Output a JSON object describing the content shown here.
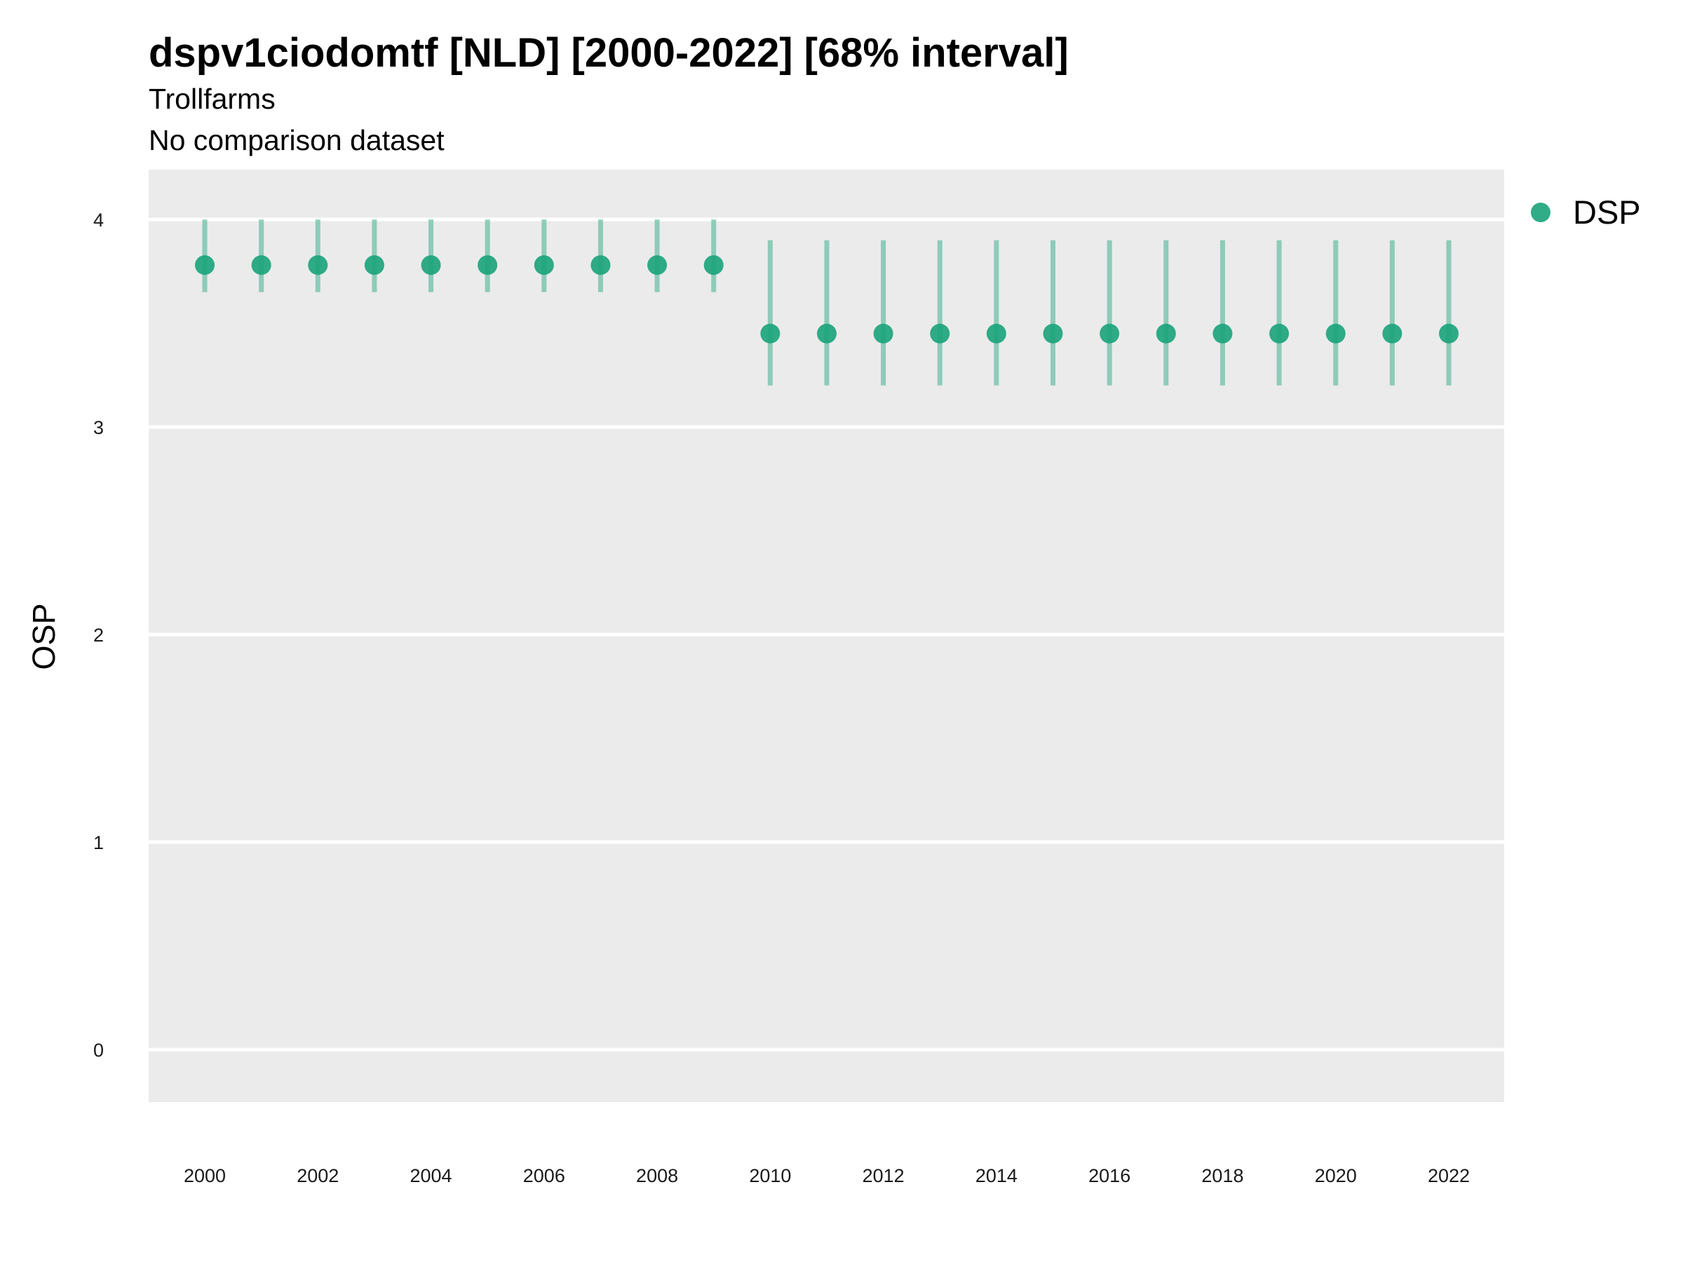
{
  "chart_data": {
    "type": "scatter",
    "title": "dspv1ciodomtf [NLD] [2000-2022] [68% interval]",
    "subtitle": "Trollfarms",
    "caption": "No comparison dataset",
    "xlabel": "",
    "ylabel": "OSP",
    "x_ticks": [
      "2000",
      "2002",
      "2004",
      "2006",
      "2008",
      "2010",
      "2012",
      "2014",
      "2016",
      "2018",
      "2020",
      "2022"
    ],
    "y_ticks": [
      "0",
      "1",
      "2",
      "3",
      "4"
    ],
    "xlim": [
      1999,
      2023
    ],
    "ylim": [
      -0.25,
      4.25
    ],
    "grid": true,
    "legend_position": "right",
    "series": [
      {
        "name": "DSP",
        "color": "#1aa37a",
        "x": [
          2000,
          2001,
          2002,
          2003,
          2004,
          2005,
          2006,
          2007,
          2008,
          2009,
          2010,
          2011,
          2012,
          2013,
          2014,
          2015,
          2016,
          2017,
          2018,
          2019,
          2020,
          2021,
          2022
        ],
        "y": [
          3.78,
          3.78,
          3.78,
          3.78,
          3.78,
          3.78,
          3.78,
          3.78,
          3.78,
          3.78,
          3.45,
          3.45,
          3.45,
          3.45,
          3.45,
          3.45,
          3.45,
          3.45,
          3.45,
          3.45,
          3.45,
          3.45,
          3.45
        ],
        "lower": [
          3.65,
          3.65,
          3.65,
          3.65,
          3.65,
          3.65,
          3.65,
          3.65,
          3.65,
          3.65,
          3.2,
          3.2,
          3.2,
          3.2,
          3.2,
          3.2,
          3.2,
          3.2,
          3.2,
          3.2,
          3.2,
          3.2,
          3.2
        ],
        "upper": [
          4.0,
          4.0,
          4.0,
          4.0,
          4.0,
          4.0,
          4.0,
          4.0,
          4.0,
          4.0,
          3.9,
          3.9,
          3.9,
          3.9,
          3.9,
          3.9,
          3.9,
          3.9,
          3.9,
          3.9,
          3.9,
          3.9,
          3.9
        ]
      }
    ]
  }
}
